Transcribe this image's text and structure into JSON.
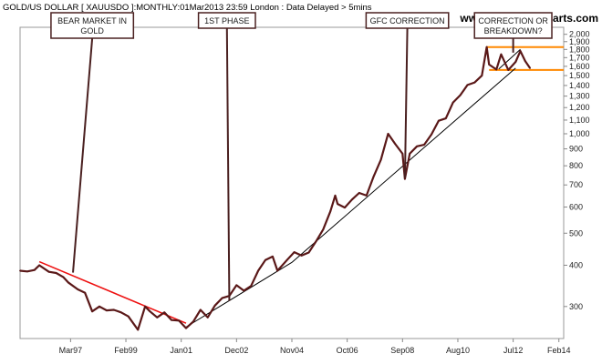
{
  "header": {
    "title": "GOLD/US DOLLAR [ XAUUSDO ]:MONTHLY:01Mar2013 23:59 London : Data Delayed > 5mins",
    "watermark": "www.incrediblecharts.com"
  },
  "chart_data": {
    "type": "line",
    "x_ticks": [
      "Mar97",
      "Feb99",
      "Jan01",
      "Dec02",
      "Nov04",
      "Oct06",
      "Sep08",
      "Aug10",
      "Jul12",
      "Feb14"
    ],
    "xlim": [
      "Jun95",
      "Apr14"
    ],
    "y_scale": "log",
    "ylim": [
      240,
      2100
    ],
    "y_ticks": [
      300,
      400,
      500,
      600,
      700,
      800,
      900,
      1000,
      1100,
      1200,
      1300,
      1400,
      1500,
      1600,
      1700,
      1800,
      1900,
      2000
    ],
    "y_tick_labels": [
      "300",
      "400",
      "500",
      "600",
      "700",
      "800",
      "900",
      "1,000",
      "1,100",
      "1,200",
      "1,300",
      "1,400",
      "1,500",
      "1,600",
      "1,700",
      "1,800",
      "1,900",
      "2,000"
    ],
    "grid": false,
    "series": [
      {
        "color": "#5a1818",
        "points": [
          [
            "1995-06",
            385
          ],
          [
            "1995-09",
            383
          ],
          [
            "1995-12",
            387
          ],
          [
            "1996-02",
            400
          ],
          [
            "1996-06",
            382
          ],
          [
            "1996-09",
            379
          ],
          [
            "1996-12",
            368
          ],
          [
            "1997-02",
            355
          ],
          [
            "1997-06",
            338
          ],
          [
            "1997-09",
            330
          ],
          [
            "1997-12",
            290
          ],
          [
            "1998-03",
            300
          ],
          [
            "1998-06",
            292
          ],
          [
            "1998-09",
            293
          ],
          [
            "1998-12",
            288
          ],
          [
            "1999-03",
            280
          ],
          [
            "1999-07",
            255
          ],
          [
            "1999-10",
            300
          ],
          [
            "1999-12",
            290
          ],
          [
            "2000-03",
            278
          ],
          [
            "2000-06",
            288
          ],
          [
            "2000-09",
            273
          ],
          [
            "2000-12",
            272
          ],
          [
            "2001-03",
            258
          ],
          [
            "2001-06",
            270
          ],
          [
            "2001-09",
            293
          ],
          [
            "2001-12",
            278
          ],
          [
            "2002-03",
            302
          ],
          [
            "2002-06",
            318
          ],
          [
            "2002-09",
            323
          ],
          [
            "2002-12",
            348
          ],
          [
            "2003-03",
            335
          ],
          [
            "2003-06",
            346
          ],
          [
            "2003-09",
            385
          ],
          [
            "2003-12",
            415
          ],
          [
            "2004-03",
            425
          ],
          [
            "2004-05",
            385
          ],
          [
            "2004-09",
            415
          ],
          [
            "2004-12",
            438
          ],
          [
            "2005-03",
            428
          ],
          [
            "2005-06",
            437
          ],
          [
            "2005-09",
            472
          ],
          [
            "2005-12",
            513
          ],
          [
            "2006-03",
            582
          ],
          [
            "2006-05",
            650
          ],
          [
            "2006-06",
            613
          ],
          [
            "2006-09",
            598
          ],
          [
            "2006-12",
            632
          ],
          [
            "2007-03",
            662
          ],
          [
            "2007-06",
            650
          ],
          [
            "2007-09",
            743
          ],
          [
            "2007-12",
            834
          ],
          [
            "2008-03",
            1000
          ],
          [
            "2008-06",
            930
          ],
          [
            "2008-09",
            870
          ],
          [
            "2008-10",
            730
          ],
          [
            "2008-12",
            870
          ],
          [
            "2009-03",
            916
          ],
          [
            "2009-06",
            926
          ],
          [
            "2009-09",
            995
          ],
          [
            "2009-12",
            1095
          ],
          [
            "2010-03",
            1113
          ],
          [
            "2010-06",
            1244
          ],
          [
            "2010-09",
            1308
          ],
          [
            "2010-12",
            1405
          ],
          [
            "2011-03",
            1430
          ],
          [
            "2011-06",
            1500
          ],
          [
            "2011-08",
            1830
          ],
          [
            "2011-09",
            1620
          ],
          [
            "2011-12",
            1565
          ],
          [
            "2012-02",
            1740
          ],
          [
            "2012-05",
            1560
          ],
          [
            "2012-08",
            1650
          ],
          [
            "2012-10",
            1780
          ],
          [
            "2012-12",
            1660
          ],
          [
            "2013-02",
            1580
          ]
        ]
      }
    ],
    "trendlines": [
      {
        "color": "#ee1111",
        "from": [
          "1996-02",
          410
        ],
        "to": [
          "2001-03",
          267
        ]
      },
      {
        "color": "#000000",
        "from": [
          "2001-03",
          260
        ],
        "to": [
          "2004-11",
          408
        ]
      },
      {
        "color": "#000000",
        "from": [
          "2004-11",
          408
        ],
        "to": [
          "2012-08",
          1580
        ]
      },
      {
        "color": "#000000",
        "from": [
          "2012-01",
          1570
        ],
        "to": [
          "2012-10",
          1800
        ]
      }
    ],
    "levels": [
      {
        "color": "#ff8800",
        "value": 1830,
        "from": "2011-08",
        "to": "2014-04"
      },
      {
        "color": "#ff8800",
        "value": 1560,
        "from": "2011-09",
        "to": "2014-04"
      }
    ],
    "annotations": [
      {
        "text": [
          "BEAR MARKET IN",
          "GOLD"
        ],
        "label_at": "1997-12",
        "point": [
          "1997-04",
          380
        ]
      },
      {
        "text": [
          "1ST PHASE"
        ],
        "label_at": "2002-08",
        "point": [
          "2002-09",
          312
        ]
      },
      {
        "text": [
          "GFC CORRECTION"
        ],
        "label_at": "2008-11",
        "point": [
          "2008-10",
          735
        ]
      },
      {
        "text": [
          "CORRECTION OR",
          "BREAKDOWN?"
        ],
        "label_at": "2012-07",
        "point": [
          "2012-07",
          1760
        ]
      }
    ]
  }
}
